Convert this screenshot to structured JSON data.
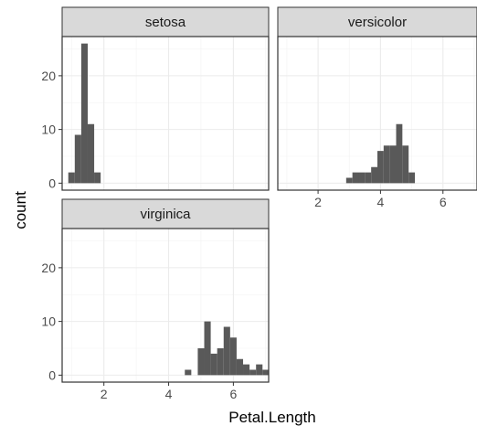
{
  "chart_data": {
    "type": "histogram",
    "xlabel": "Petal.Length",
    "ylabel": "count",
    "xlim": [
      0.71,
      7.09
    ],
    "ylim": [
      -1.3,
      27.3
    ],
    "x_ticks": [
      2,
      4,
      6
    ],
    "y_ticks": [
      0,
      10,
      20
    ],
    "bin_width": 0.2,
    "grid": true,
    "bar_color": "#595959",
    "strip_fill": "#d9d9d9",
    "panels": [
      {
        "name": "setosa",
        "bins": [
          {
            "center": 1.0,
            "count": 2
          },
          {
            "center": 1.2,
            "count": 9
          },
          {
            "center": 1.4,
            "count": 26
          },
          {
            "center": 1.6,
            "count": 11
          },
          {
            "center": 1.8,
            "count": 2
          }
        ]
      },
      {
        "name": "versicolor",
        "bins": [
          {
            "center": 3.0,
            "count": 1
          },
          {
            "center": 3.2,
            "count": 2
          },
          {
            "center": 3.4,
            "count": 2
          },
          {
            "center": 3.6,
            "count": 2
          },
          {
            "center": 3.8,
            "count": 3
          },
          {
            "center": 4.0,
            "count": 6
          },
          {
            "center": 4.2,
            "count": 7
          },
          {
            "center": 4.4,
            "count": 7
          },
          {
            "center": 4.6,
            "count": 11
          },
          {
            "center": 4.8,
            "count": 7
          },
          {
            "center": 5.0,
            "count": 2
          }
        ]
      },
      {
        "name": "virginica",
        "bins": [
          {
            "center": 4.6,
            "count": 1
          },
          {
            "center": 5.0,
            "count": 5
          },
          {
            "center": 5.2,
            "count": 10
          },
          {
            "center": 5.4,
            "count": 4
          },
          {
            "center": 5.6,
            "count": 5
          },
          {
            "center": 5.8,
            "count": 9
          },
          {
            "center": 6.0,
            "count": 7
          },
          {
            "center": 6.2,
            "count": 3
          },
          {
            "center": 6.4,
            "count": 2
          },
          {
            "center": 6.6,
            "count": 1
          },
          {
            "center": 6.8,
            "count": 2
          },
          {
            "center": 7.0,
            "count": 1
          }
        ]
      }
    ]
  }
}
